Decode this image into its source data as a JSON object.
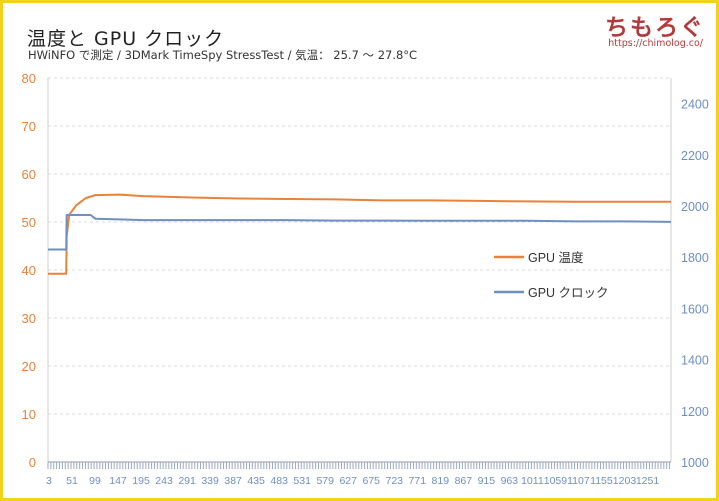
{
  "header": {
    "title": "温度と GPU クロック",
    "subtitle": "HWiNFO で測定 / 3DMark TimeSpy StressTest / 気温： 25.7 〜 27.8°C",
    "brand": "ちもろぐ",
    "brand_url": "https://chimolog.co/"
  },
  "chart_data": {
    "type": "line",
    "title": "温度と GPU クロック",
    "subtitle": "HWiNFO で測定 / 3DMark TimeSpy StressTest / 気温： 25.7 〜 27.8°C",
    "x_tick_labels": [
      "3",
      "51",
      "99",
      "147",
      "195",
      "243",
      "291",
      "339",
      "387",
      "435",
      "483",
      "531",
      "579",
      "627",
      "675",
      "723",
      "771",
      "819",
      "867",
      "915",
      "963",
      "1011",
      "1059",
      "1107",
      "1155",
      "1203",
      "1251"
    ],
    "xlim": [
      1,
      1300
    ],
    "y_left": {
      "ylim": [
        0,
        80
      ],
      "ticks": [
        0,
        10,
        20,
        30,
        40,
        50,
        60,
        70,
        80
      ],
      "color": "#e8823a"
    },
    "y_right": {
      "ylim": [
        1000,
        2500
      ],
      "ticks": [
        1000,
        1200,
        1400,
        1600,
        1800,
        2000,
        2200,
        2400
      ],
      "color": "#6f8fc0"
    },
    "grid": true,
    "legend": "right",
    "series": [
      {
        "name": "GPU 温度",
        "axis": "left",
        "color": "#e8823a",
        "points": [
          [
            1,
            39.2
          ],
          [
            39,
            39.2
          ],
          [
            40,
            47
          ],
          [
            45,
            51.5
          ],
          [
            60,
            53.5
          ],
          [
            80,
            55
          ],
          [
            100,
            55.6
          ],
          [
            150,
            55.7
          ],
          [
            200,
            55.4
          ],
          [
            300,
            55.1
          ],
          [
            400,
            54.9
          ],
          [
            500,
            54.8
          ],
          [
            600,
            54.7
          ],
          [
            700,
            54.5
          ],
          [
            800,
            54.5
          ],
          [
            900,
            54.4
          ],
          [
            1000,
            54.3
          ],
          [
            1100,
            54.2
          ],
          [
            1200,
            54.2
          ],
          [
            1300,
            54.2
          ]
        ]
      },
      {
        "name": "GPU クロック",
        "axis": "right",
        "color": "#6f8fc0",
        "points": [
          [
            1,
            1830
          ],
          [
            39,
            1830
          ],
          [
            40,
            1965
          ],
          [
            90,
            1965
          ],
          [
            100,
            1950
          ],
          [
            200,
            1945
          ],
          [
            300,
            1945
          ],
          [
            400,
            1945
          ],
          [
            500,
            1945
          ],
          [
            600,
            1943
          ],
          [
            700,
            1943
          ],
          [
            800,
            1942
          ],
          [
            900,
            1942
          ],
          [
            1000,
            1942
          ],
          [
            1100,
            1940
          ],
          [
            1200,
            1940
          ],
          [
            1300,
            1938
          ]
        ]
      }
    ]
  },
  "legend": {
    "items": [
      {
        "label": "GPU 温度",
        "color": "#e8823a"
      },
      {
        "label": "GPU クロック",
        "color": "#6f8fc0"
      }
    ]
  }
}
